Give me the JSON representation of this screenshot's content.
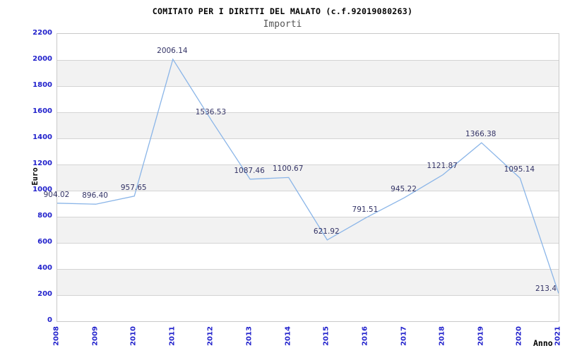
{
  "title": "COMITATO PER I DIRITTI DEL MALATO (c.f.92019080263)",
  "subtitle": "Importi",
  "chart_data": {
    "type": "line",
    "title": "COMITATO PER I DIRITTI DEL MALATO (c.f.92019080263)",
    "subtitle": "Importi",
    "xlabel": "Anno",
    "ylabel": "Euro",
    "x": [
      2008,
      2009,
      2010,
      2011,
      2012,
      2013,
      2014,
      2015,
      2016,
      2017,
      2018,
      2019,
      2020,
      2021
    ],
    "values": [
      904.02,
      896.4,
      957.65,
      2006.14,
      1536.53,
      1087.46,
      1100.67,
      621.92,
      791.51,
      945.22,
      1121.87,
      1366.38,
      1095.14,
      213.4
    ],
    "point_labels": [
      "904.02",
      "896.40",
      "957.65",
      "2006.14",
      "1536.53",
      "1087.46",
      "1100.67",
      "621.92",
      "791.51",
      "945.22",
      "1121.87",
      "1366.38",
      "1095.14",
      "213.4"
    ],
    "ylim": [
      0,
      2200
    ],
    "y_tick_step": 200,
    "grid": true,
    "legend": "none",
    "colors": {
      "line": "#8ab5e8",
      "point_label": "#333366",
      "tick_label": "#2222cc",
      "band": "#f2f2f2",
      "gridline": "#d4d4d4",
      "plot_border": "#c9c9c9",
      "subtitle": "#555555",
      "title": "#000000"
    }
  }
}
